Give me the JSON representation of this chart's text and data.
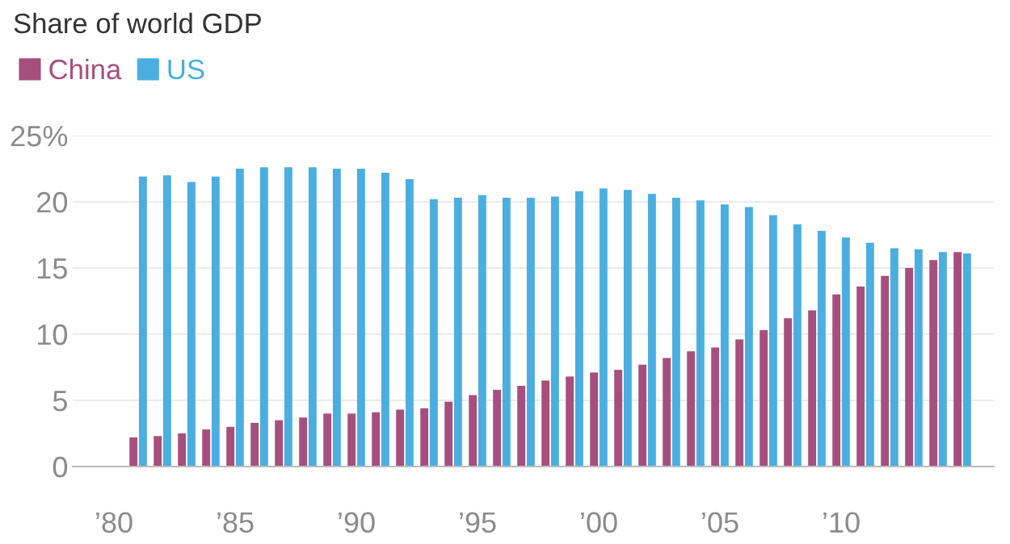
{
  "chart_data": {
    "type": "bar",
    "title": "Share of world GDP",
    "x": [
      1981,
      1982,
      1983,
      1984,
      1985,
      1986,
      1987,
      1988,
      1989,
      1990,
      1991,
      1992,
      1993,
      1994,
      1995,
      1996,
      1997,
      1998,
      1999,
      2000,
      2001,
      2002,
      2003,
      2004,
      2005,
      2006,
      2007,
      2008,
      2009,
      2010,
      2011,
      2012,
      2013,
      2014,
      2015
    ],
    "series": [
      {
        "name": "China",
        "color": "#a64f7f",
        "values": [
          2.2,
          2.3,
          2.5,
          2.8,
          3.0,
          3.3,
          3.5,
          3.7,
          4.0,
          4.0,
          4.1,
          4.3,
          4.4,
          4.9,
          5.4,
          5.8,
          6.1,
          6.5,
          6.8,
          7.1,
          7.3,
          7.7,
          8.2,
          8.7,
          9.0,
          9.6,
          10.3,
          11.2,
          11.8,
          13.0,
          13.6,
          14.4,
          15.0,
          15.6,
          16.2
        ]
      },
      {
        "name": "US",
        "color": "#4aaee0",
        "values": [
          21.9,
          22.0,
          21.5,
          21.9,
          22.5,
          22.6,
          22.6,
          22.6,
          22.5,
          22.5,
          22.2,
          21.7,
          20.2,
          20.3,
          20.5,
          20.3,
          20.3,
          20.4,
          20.8,
          21.0,
          20.9,
          20.6,
          20.3,
          20.1,
          19.8,
          19.6,
          19.0,
          18.3,
          17.8,
          17.3,
          16.9,
          16.5,
          16.4,
          16.2,
          16.1
        ]
      }
    ],
    "xlim": [
      1978.3,
      2016.3
    ],
    "xticks": [
      {
        "value": 1980,
        "label": "’80"
      },
      {
        "value": 1985,
        "label": "’85"
      },
      {
        "value": 1990,
        "label": "’90"
      },
      {
        "value": 1995,
        "label": "’95"
      },
      {
        "value": 2000,
        "label": "’00"
      },
      {
        "value": 2005,
        "label": "’05"
      },
      {
        "value": 2010,
        "label": "’10"
      }
    ],
    "ylim": [
      0,
      25
    ],
    "yticks": [
      0,
      5,
      10,
      15,
      20,
      {
        "value": 25,
        "label": "25%"
      }
    ],
    "grid": "y",
    "legend": "top left"
  }
}
